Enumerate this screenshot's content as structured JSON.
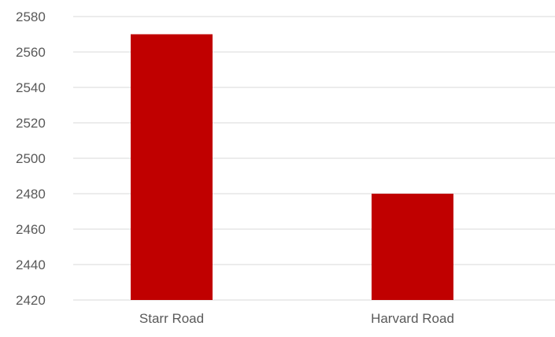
{
  "chart_data": {
    "type": "bar",
    "categories": [
      "Starr Road",
      "Harvard Road"
    ],
    "values": [
      2570,
      2480
    ],
    "title": "",
    "xlabel": "",
    "ylabel": "",
    "ylim": [
      2420,
      2580
    ],
    "yticks": [
      2420,
      2440,
      2460,
      2480,
      2500,
      2520,
      2540,
      2560,
      2580
    ],
    "grid": true,
    "legend": "none",
    "colors": {
      "bar": "#C00000",
      "grid": "#D9D9D9",
      "tick_text": "#595959"
    }
  }
}
